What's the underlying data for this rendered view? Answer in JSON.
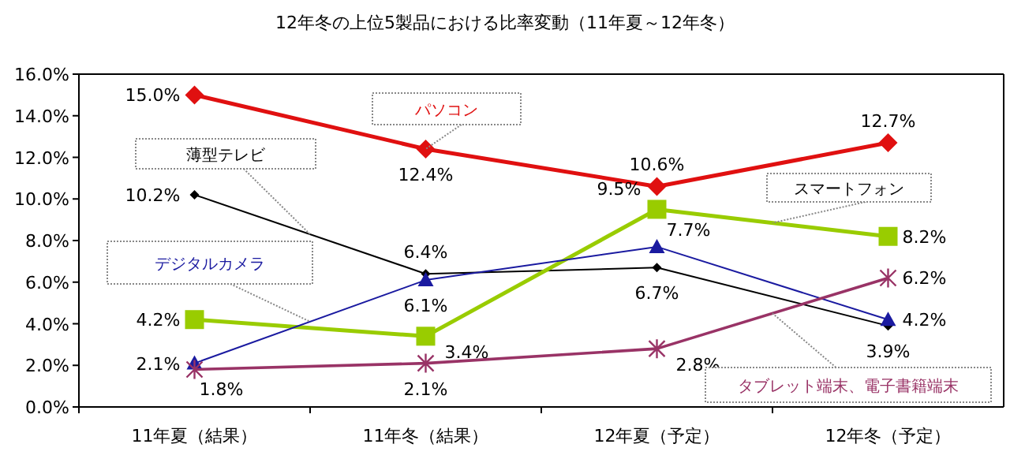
{
  "chart_data": {
    "type": "line",
    "title": "12年冬の上位5製品における比率変動（11年夏～12年冬）",
    "categories": [
      "11年夏（結果）",
      "11年冬（結果）",
      "12年夏（予定）",
      "12年冬（予定）"
    ],
    "ylim": [
      0,
      16
    ],
    "yticks": [
      {
        "value": 0,
        "label": "0.0%"
      },
      {
        "value": 2,
        "label": "2.0%"
      },
      {
        "value": 4,
        "label": "4.0%"
      },
      {
        "value": 6,
        "label": "6.0%"
      },
      {
        "value": 8,
        "label": "8.0%"
      },
      {
        "value": 10,
        "label": "10.0%"
      },
      {
        "value": 12,
        "label": "12.0%"
      },
      {
        "value": 14,
        "label": "14.0%"
      },
      {
        "value": 16,
        "label": "16.0%"
      }
    ],
    "grid": false,
    "series": [
      {
        "name": "パソコン",
        "color": "#e01010",
        "marker": "diamond",
        "values": [
          15.0,
          12.4,
          10.6,
          12.7
        ],
        "value_labels": [
          "15.0%",
          "12.4%",
          "10.6%",
          "12.7%"
        ]
      },
      {
        "name": "薄型テレビ",
        "color": "#000000",
        "marker": "diamond",
        "values": [
          10.2,
          6.4,
          6.7,
          3.9
        ],
        "value_labels": [
          "10.2%",
          "6.4%",
          "6.7%",
          "3.9%"
        ]
      },
      {
        "name": "スマートフォン",
        "color": "#99cc00",
        "marker": "square",
        "values": [
          4.2,
          3.4,
          9.5,
          8.2
        ],
        "value_labels": [
          "4.2%",
          "3.4%",
          "9.5%",
          "8.2%"
        ]
      },
      {
        "name": "デジタルカメラ",
        "color": "#1a1aa0",
        "marker": "triangle",
        "values": [
          2.1,
          6.1,
          7.7,
          4.2
        ],
        "value_labels": [
          "2.1%",
          "6.1%",
          "7.7%",
          "4.2%"
        ]
      },
      {
        "name": "タブレット端末、電子書籍端末",
        "color": "#993366",
        "marker": "cross",
        "values": [
          1.8,
          2.1,
          2.8,
          6.2
        ],
        "value_labels": [
          "1.8%",
          "2.1%",
          "2.8%",
          "6.2%"
        ]
      }
    ]
  }
}
